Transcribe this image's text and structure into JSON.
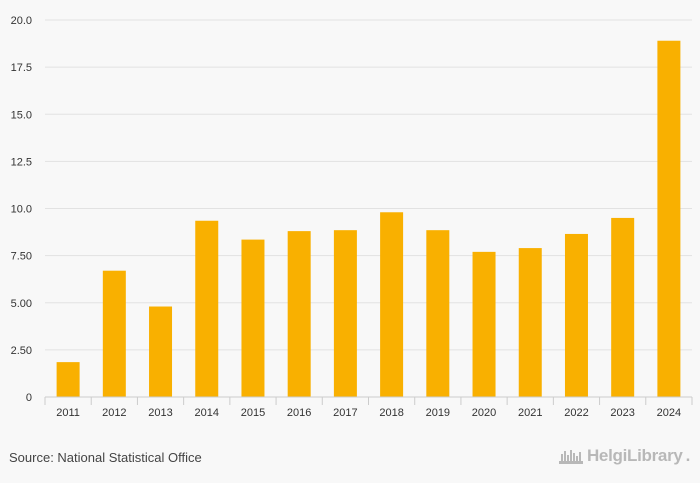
{
  "chart_data": {
    "type": "bar",
    "title": "",
    "xlabel": "",
    "ylabel": "",
    "categories": [
      "2011",
      "2012",
      "2013",
      "2014",
      "2015",
      "2016",
      "2017",
      "2018",
      "2019",
      "2020",
      "2021",
      "2022",
      "2023",
      "2024"
    ],
    "values": [
      1.85,
      6.7,
      4.8,
      9.35,
      8.35,
      8.8,
      8.85,
      9.8,
      8.85,
      7.7,
      7.9,
      8.65,
      9.5,
      18.9
    ],
    "ylim": [
      0,
      20
    ],
    "yticks": [
      0,
      2.5,
      5,
      7.5,
      10,
      12.5,
      15,
      17.5,
      20
    ],
    "ytick_labels": [
      "0",
      "2.50",
      "5.00",
      "7.50",
      "10.0",
      "12.5",
      "15.0",
      "17.5",
      "20.0"
    ],
    "grid": true,
    "bar_color": "#f9b000"
  },
  "footer": {
    "source": "Source: National Statistical Office",
    "brand_name": "HelgiLibrary",
    "brand_dot": "."
  },
  "colors": {
    "background": "#f8f8f8",
    "grid": "#e2e2e2",
    "axis": "#cccccc",
    "text": "#333333",
    "brand": "#b8b8b8"
  }
}
